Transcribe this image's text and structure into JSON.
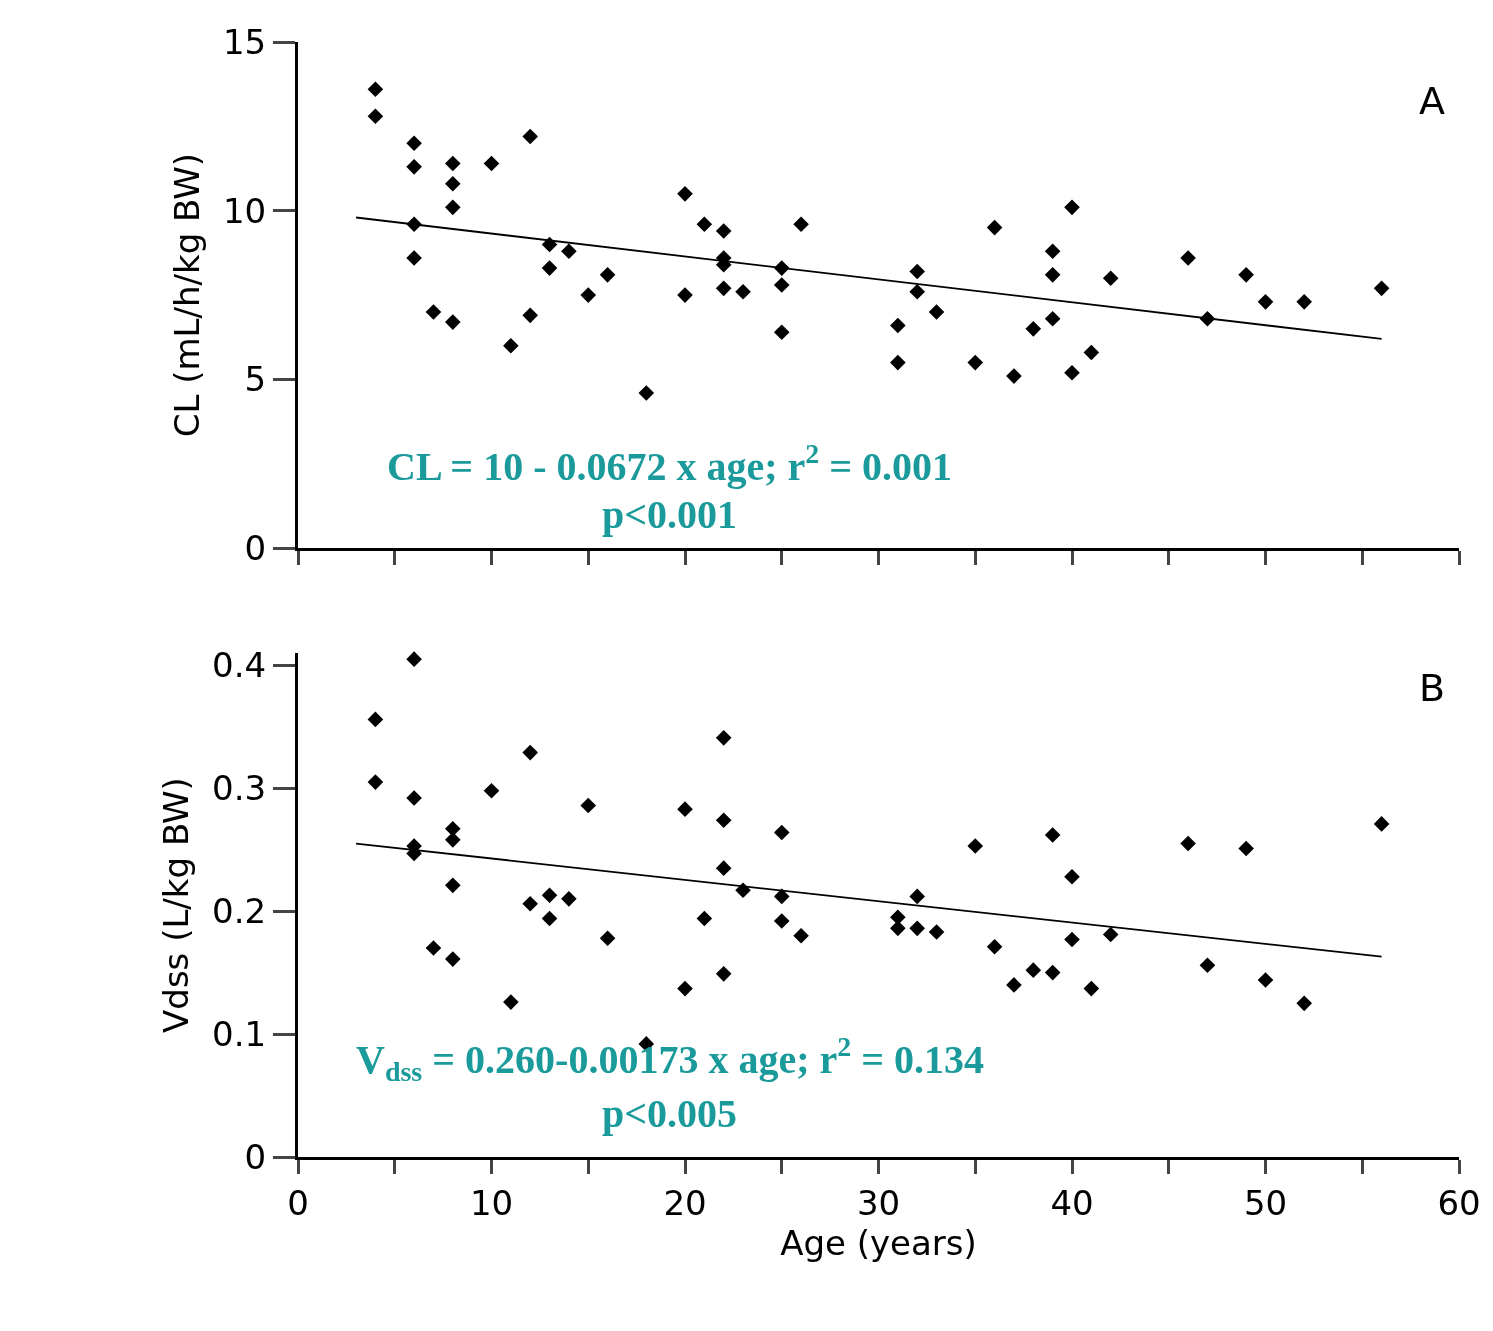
{
  "chart_data": [
    {
      "type": "scatter",
      "ylabel": "CL (mL/h/kg BW)",
      "xlim": [
        0,
        60
      ],
      "ylim": [
        0,
        15
      ],
      "xticks": [
        {
          "value": 0,
          "label": null
        },
        {
          "value": 5,
          "label": null
        },
        {
          "value": 10,
          "label": null
        },
        {
          "value": 15,
          "label": null
        },
        {
          "value": 20,
          "label": null
        },
        {
          "value": 25,
          "label": null
        },
        {
          "value": 30,
          "label": null
        },
        {
          "value": 35,
          "label": null
        },
        {
          "value": 40,
          "label": null
        },
        {
          "value": 45,
          "label": null
        },
        {
          "value": 50,
          "label": null
        },
        {
          "value": 55,
          "label": null
        },
        {
          "value": 60,
          "label": null
        }
      ],
      "yticks": [
        0,
        5,
        10,
        15
      ],
      "tick_labels": "y",
      "annotations": [
        "CL = 10 - 0.0672 x age; r$^{2}$ = 0.001",
        "p<0.001",
        "A"
      ],
      "series": [
        {
          "marker": "diamond",
          "color": "#000000",
          "x": [
            4,
            4,
            6,
            6,
            6,
            6,
            7,
            8,
            8,
            8,
            8,
            10,
            11,
            12,
            12,
            13,
            13,
            14,
            15,
            16,
            18,
            20,
            20,
            21,
            22,
            22,
            22,
            22,
            23,
            25,
            25,
            25,
            26,
            31,
            31,
            32,
            32,
            33,
            35,
            36,
            37,
            38,
            39,
            39,
            39,
            40,
            40,
            41,
            42,
            46,
            47,
            49,
            50,
            52,
            56
          ],
          "values": [
            13.6,
            12.8,
            12.0,
            11.3,
            9.6,
            8.6,
            7.0,
            11.4,
            10.8,
            10.1,
            6.7,
            11.4,
            6.0,
            6.9,
            12.2,
            9.0,
            8.3,
            8.8,
            7.5,
            8.1,
            4.6,
            10.5,
            7.5,
            9.6,
            9.4,
            8.6,
            8.4,
            7.7,
            7.6,
            8.3,
            7.8,
            6.4,
            9.6,
            6.6,
            5.5,
            8.2,
            7.6,
            7.0,
            5.5,
            9.5,
            5.1,
            6.5,
            8.8,
            8.1,
            6.8,
            10.1,
            5.2,
            5.8,
            8.0,
            8.6,
            6.8,
            8.1,
            7.3,
            7.3,
            7.7
          ]
        },
        {
          "type": "line",
          "marker": "none",
          "line_style": "solid",
          "color": "#000000",
          "x": [
            3,
            56
          ],
          "values": [
            9.8,
            6.2
          ]
        }
      ]
    },
    {
      "type": "scatter",
      "xlabel": "Age (years)",
      "ylabel": "Vdss (L/kg BW)",
      "xlim": [
        0,
        60
      ],
      "ylim": [
        0,
        0.41
      ],
      "xticks": [
        0,
        {
          "value": 5,
          "label": null
        },
        10,
        {
          "value": 15,
          "label": null
        },
        20,
        {
          "value": 25,
          "label": null
        },
        30,
        {
          "value": 35,
          "label": null
        },
        40,
        {
          "value": 45,
          "label": null
        },
        50,
        {
          "value": 55,
          "label": null
        },
        60
      ],
      "yticks": [
        {
          "value": 0,
          "label": "0"
        },
        0.1,
        0.2,
        0.3,
        0.4
      ],
      "annotations": [
        "V$_{dss}$ = 0.260-0.00173 x age; r$^{2}$ = 0.134",
        "p<0.005",
        "B"
      ],
      "series": [
        {
          "marker": "diamond",
          "color": "#000000",
          "x": [
            4,
            4,
            6,
            6,
            6,
            6,
            8,
            8,
            8,
            7,
            8,
            10,
            11,
            12,
            12,
            13,
            13,
            14,
            15,
            16,
            18,
            20,
            20,
            21,
            22,
            22,
            22,
            22,
            23,
            25,
            25,
            25,
            26,
            31,
            31,
            32,
            32,
            33,
            35,
            36,
            37,
            38,
            39,
            39,
            40,
            40,
            41,
            42,
            46,
            47,
            49,
            50,
            52,
            56
          ],
          "values": [
            0.356,
            0.305,
            0.405,
            0.292,
            0.253,
            0.247,
            0.267,
            0.258,
            0.221,
            0.17,
            0.161,
            0.298,
            0.126,
            0.329,
            0.206,
            0.213,
            0.194,
            0.21,
            0.286,
            0.178,
            0.092,
            0.283,
            0.137,
            0.194,
            0.341,
            0.274,
            0.235,
            0.149,
            0.217,
            0.264,
            0.212,
            0.192,
            0.18,
            0.195,
            0.186,
            0.212,
            0.186,
            0.183,
            0.253,
            0.171,
            0.14,
            0.152,
            0.15,
            0.262,
            0.228,
            0.177,
            0.137,
            0.181,
            0.255,
            0.156,
            0.251,
            0.144,
            0.125,
            0.271
          ]
        },
        {
          "type": "line",
          "marker": "none",
          "line_style": "solid",
          "color": "#000000",
          "x": [
            3,
            56
          ],
          "values": [
            0.255,
            0.163
          ]
        }
      ]
    }
  ]
}
